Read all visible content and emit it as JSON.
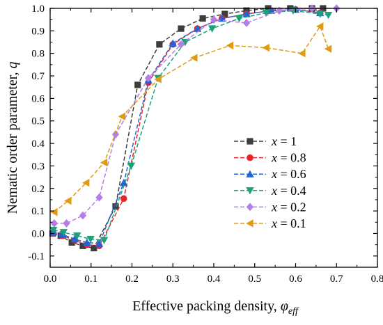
{
  "chart_data": {
    "type": "line",
    "xlabel": "Effective packing density, ",
    "xlabel_symbol": "φ",
    "xlabel_sub": "eff",
    "ylabel": "Nematic order parameter, ",
    "ylabel_symbol": "q",
    "xlim": [
      0.0,
      0.8
    ],
    "ylim": [
      -0.15,
      1.0
    ],
    "xticks": [
      "0.0",
      "0.1",
      "0.2",
      "0.3",
      "0.4",
      "0.5",
      "0.6",
      "0.7",
      "0.8"
    ],
    "yticks": [
      "-0.1",
      "0.0",
      "0.1",
      "0.2",
      "0.3",
      "0.4",
      "0.5",
      "0.6",
      "0.7",
      "0.8",
      "0.9",
      "1.0"
    ],
    "legend_position": "lower-right",
    "series": [
      {
        "name": "x = 1",
        "label_var": "x",
        "label_val": "= 1",
        "color": "#3d3d3d",
        "marker": "square",
        "x": [
          0.006,
          0.026,
          0.053,
          0.08,
          0.107,
          0.16,
          0.214,
          0.267,
          0.32,
          0.373,
          0.427,
          0.48,
          0.533,
          0.587,
          0.64,
          0.667
        ],
        "y": [
          0.0,
          -0.01,
          -0.04,
          -0.055,
          -0.065,
          0.12,
          0.66,
          0.84,
          0.91,
          0.955,
          0.975,
          0.99,
          1.0,
          1.0,
          1.0,
          1.0
        ]
      },
      {
        "name": "x = 0.8",
        "label_var": "x",
        "label_val": "= 0.8",
        "color": "#e8262a",
        "marker": "circle",
        "x": [
          0.007,
          0.03,
          0.06,
          0.09,
          0.12,
          0.18,
          0.24,
          0.3,
          0.36,
          0.42,
          0.48,
          0.54,
          0.6,
          0.66
        ],
        "y": [
          0.0,
          -0.01,
          -0.03,
          -0.05,
          -0.055,
          0.155,
          0.67,
          0.84,
          0.91,
          0.955,
          0.975,
          0.99,
          0.995,
          0.98
        ]
      },
      {
        "name": "x = 0.6",
        "label_var": "x",
        "label_val": "= 0.6",
        "color": "#2264d6",
        "marker": "triangle-up",
        "x": [
          0.007,
          0.03,
          0.06,
          0.09,
          0.12,
          0.18,
          0.24,
          0.3,
          0.36,
          0.42,
          0.48,
          0.54,
          0.6,
          0.66
        ],
        "y": [
          0.005,
          -0.005,
          -0.025,
          -0.04,
          -0.045,
          0.225,
          0.68,
          0.845,
          0.91,
          0.955,
          0.975,
          0.99,
          0.995,
          0.98
        ]
      },
      {
        "name": "x = 0.4",
        "label_var": "x",
        "label_val": "= 0.4",
        "color": "#1aa37a",
        "marker": "triangle-down",
        "x": [
          0.008,
          0.033,
          0.066,
          0.099,
          0.132,
          0.198,
          0.264,
          0.33,
          0.396,
          0.462,
          0.528,
          0.594,
          0.66,
          0.68
        ],
        "y": [
          0.015,
          0.005,
          -0.01,
          -0.025,
          -0.03,
          0.3,
          0.69,
          0.85,
          0.91,
          0.955,
          0.98,
          0.99,
          0.975,
          0.97
        ]
      },
      {
        "name": "x = 0.2",
        "label_var": "x",
        "label_val": "= 0.2",
        "color": "#b57ee6",
        "marker": "diamond",
        "x": [
          0.01,
          0.04,
          0.08,
          0.12,
          0.16,
          0.24,
          0.32,
          0.4,
          0.48,
          0.56,
          0.64,
          0.7
        ],
        "y": [
          0.045,
          0.045,
          0.08,
          0.16,
          0.44,
          0.69,
          0.84,
          0.95,
          0.935,
          0.99,
          1.0,
          1.0
        ]
      },
      {
        "name": "x = 0.1",
        "label_var": "x",
        "label_val": "= 0.1",
        "color": "#e09b12",
        "marker": "triangle-left",
        "x": [
          0.01,
          0.044,
          0.088,
          0.132,
          0.176,
          0.264,
          0.352,
          0.44,
          0.528,
          0.616,
          0.66,
          0.68
        ],
        "y": [
          0.095,
          0.145,
          0.225,
          0.315,
          0.52,
          0.685,
          0.78,
          0.835,
          0.825,
          0.8,
          0.92,
          0.82
        ]
      }
    ]
  }
}
